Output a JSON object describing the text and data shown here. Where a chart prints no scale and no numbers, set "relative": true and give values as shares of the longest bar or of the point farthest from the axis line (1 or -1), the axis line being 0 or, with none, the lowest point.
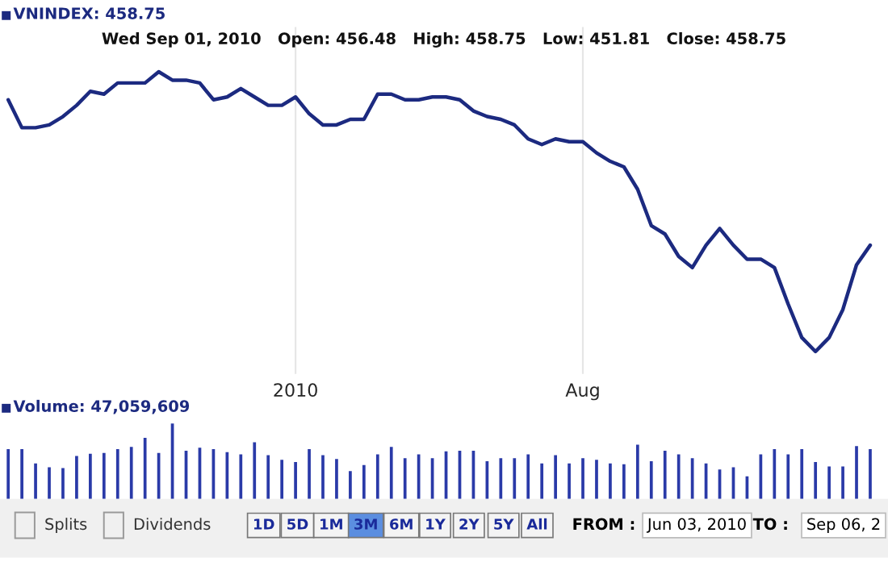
{
  "chart_data": [
    {
      "type": "line",
      "title": "VNINDEX: 458.75",
      "subtitle": "Wed Sep 01, 2010   Open: 456.48   High: 458.75   Low: 451.81   Close: 458.75",
      "relative": true,
      "categories": [
        null,
        null,
        null,
        null,
        null,
        null,
        null,
        null,
        null,
        null,
        null,
        null,
        null,
        null,
        null,
        null,
        null,
        null,
        null,
        null,
        null,
        "2010",
        null,
        null,
        null,
        null,
        null,
        null,
        null,
        null,
        null,
        null,
        null,
        null,
        null,
        null,
        null,
        null,
        null,
        null,
        null,
        null,
        "Aug",
        null,
        null,
        null,
        null,
        null,
        null,
        null,
        null,
        null,
        null,
        null,
        null,
        null,
        null,
        null,
        null,
        null,
        null,
        null,
        null,
        null
      ],
      "tick_labels": "x",
      "grid": "x",
      "marker": "none",
      "line_style": "solid",
      "series": [
        {
          "color": "#1c2a80",
          "values": [
            0.9,
            0.8,
            0.8,
            0.81,
            0.84,
            0.88,
            0.93,
            0.92,
            0.96,
            0.96,
            0.96,
            1.0,
            0.97,
            0.97,
            0.96,
            0.9,
            0.91,
            0.94,
            0.91,
            0.88,
            0.88,
            0.91,
            0.85,
            0.81,
            0.81,
            0.83,
            0.83,
            0.92,
            0.92,
            0.9,
            0.9,
            0.91,
            0.91,
            0.9,
            0.86,
            0.84,
            0.83,
            0.81,
            0.76,
            0.74,
            0.76,
            0.75,
            0.75,
            0.71,
            0.68,
            0.66,
            0.58,
            0.45,
            0.42,
            0.34,
            0.3,
            0.38,
            0.44,
            0.38,
            0.33,
            0.33,
            0.3,
            0.17,
            0.05,
            0.0,
            0.05,
            0.15,
            0.31,
            0.38
          ]
        }
      ]
    },
    {
      "type": "bar",
      "title": "Volume: 47,059,609",
      "relative": true,
      "tick_labels": false,
      "grid": false,
      "categories": [
        null,
        null,
        null,
        null,
        null,
        null,
        null,
        null,
        null,
        null,
        null,
        null,
        null,
        null,
        null,
        null,
        null,
        null,
        null,
        null,
        null,
        null,
        null,
        null,
        null,
        null,
        null,
        null,
        null,
        null,
        null,
        null,
        null,
        null,
        null,
        null,
        null,
        null,
        null,
        null,
        null,
        null,
        null,
        null,
        null,
        null,
        null,
        null,
        null,
        null,
        null,
        null,
        null,
        null,
        null,
        null,
        null,
        null,
        null,
        null,
        null,
        null,
        null,
        null
      ],
      "color": "#2a3aa8",
      "values": [
        0.66,
        0.66,
        0.47,
        0.42,
        0.41,
        0.57,
        0.6,
        0.61,
        0.66,
        0.69,
        0.81,
        0.61,
        1.0,
        0.64,
        0.68,
        0.66,
        0.62,
        0.59,
        0.75,
        0.58,
        0.52,
        0.49,
        0.66,
        0.58,
        0.53,
        0.37,
        0.45,
        0.59,
        0.69,
        0.54,
        0.59,
        0.54,
        0.63,
        0.64,
        0.64,
        0.5,
        0.54,
        0.54,
        0.59,
        0.47,
        0.58,
        0.47,
        0.54,
        0.52,
        0.47,
        0.46,
        0.72,
        0.5,
        0.64,
        0.59,
        0.54,
        0.47,
        0.39,
        0.42,
        0.3,
        0.59,
        0.66,
        0.59,
        0.66,
        0.49,
        0.43,
        0.43,
        0.7,
        0.66
      ]
    },
    {
      "type": "other",
      "annotations": [
        "Splits",
        "Dividends",
        "1D",
        "5D",
        "1M",
        "3M",
        "6M",
        "1Y",
        "2Y",
        "5Y",
        "All",
        "FROM :",
        "Jun 03, 2010",
        "TO :",
        "Sep 06, 2"
      ]
    }
  ]
}
